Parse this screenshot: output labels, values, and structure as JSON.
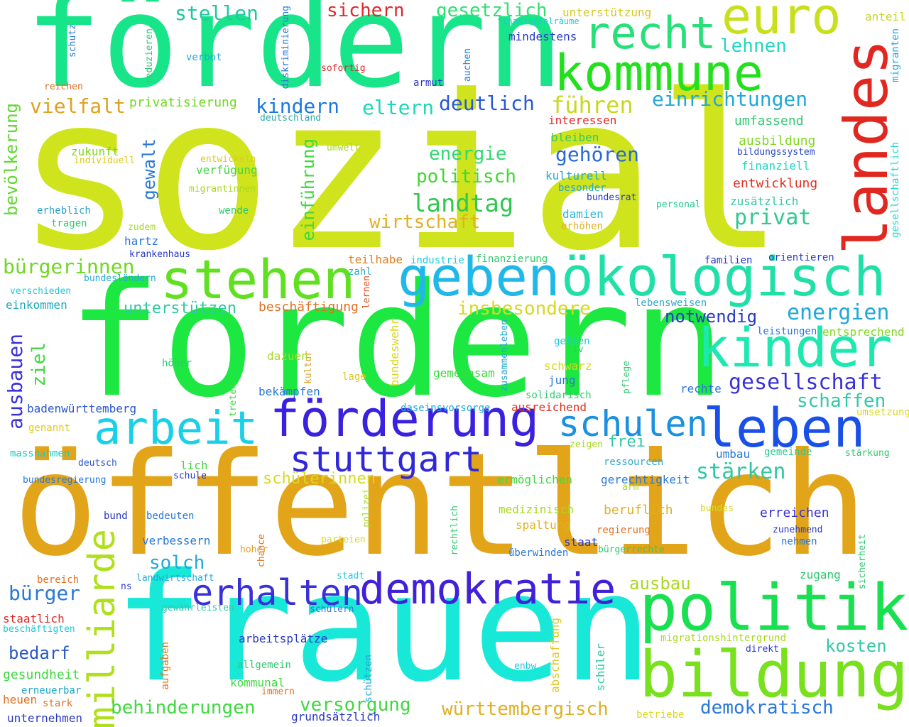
{
  "words": [
    {
      "text": "sozial",
      "color": "#cfe41c"
    },
    {
      "text": "fördern",
      "color": "#18e58a"
    },
    {
      "text": "fordern",
      "color": "#1ce841"
    },
    {
      "text": "öffentlich",
      "color": "#e2a51a"
    },
    {
      "text": "frauen",
      "color": "#18e8d8"
    },
    {
      "text": "landes",
      "color": "#e02820"
    },
    {
      "text": "kommune",
      "color": "#22e01c"
    },
    {
      "text": "recht",
      "color": "#28e07a"
    },
    {
      "text": "euro",
      "color": "#c8e01c"
    },
    {
      "text": "geben",
      "color": "#20b8e8"
    },
    {
      "text": "ökologisch",
      "color": "#20e0a8"
    },
    {
      "text": "stehen",
      "color": "#60e020"
    },
    {
      "text": "kinder",
      "color": "#1ce8b0"
    },
    {
      "text": "förderung",
      "color": "#3a20e0"
    },
    {
      "text": "leben",
      "color": "#1a50e8"
    },
    {
      "text": "arbeit",
      "color": "#1ad0e8"
    },
    {
      "text": "schulen",
      "color": "#1a90e0"
    },
    {
      "text": "stuttgart",
      "color": "#3028d8"
    },
    {
      "text": "politik",
      "color": "#18e050"
    },
    {
      "text": "bildung",
      "color": "#78e01c"
    },
    {
      "text": "demokratie",
      "color": "#4020d8"
    },
    {
      "text": "erhalten",
      "color": "#3a30d8"
    },
    {
      "text": "milliarde",
      "color": "#b0e01c"
    },
    {
      "text": "stellen",
      "color": "#20c8a0"
    },
    {
      "text": "sichern",
      "color": "#e02828"
    },
    {
      "text": "gesetzlich",
      "color": "#30e070"
    },
    {
      "text": "unterstützung",
      "color": "#d8c820"
    },
    {
      "text": "anteil",
      "color": "#c8d820"
    },
    {
      "text": "finanzspielräume",
      "color": "#20c8d8"
    },
    {
      "text": "mindestens",
      "color": "#2838c8"
    },
    {
      "text": "lehnen",
      "color": "#20d8c0"
    },
    {
      "text": "vielfalt",
      "color": "#e0a020"
    },
    {
      "text": "privatisierung",
      "color": "#70d820"
    },
    {
      "text": "kindern",
      "color": "#1a78e0"
    },
    {
      "text": "eltern",
      "color": "#1ad8b8"
    },
    {
      "text": "deutlich",
      "color": "#2858d8"
    },
    {
      "text": "führen",
      "color": "#c8d820"
    },
    {
      "text": "einrichtungen",
      "color": "#20a8d8"
    },
    {
      "text": "umfassend",
      "color": "#30c870"
    },
    {
      "text": "ausbildung",
      "color": "#80d820"
    },
    {
      "text": "bildungssystem",
      "color": "#2848c8"
    },
    {
      "text": "finanziell",
      "color": "#20d8c8"
    },
    {
      "text": "entwicklung",
      "color": "#e03020"
    },
    {
      "text": "zusätzlich",
      "color": "#30c8a8"
    },
    {
      "text": "gesellschaftlich",
      "color": "#20d8c8"
    },
    {
      "text": "migranten",
      "color": "#20a8e0"
    },
    {
      "text": "personal",
      "color": "#20c890"
    },
    {
      "text": "energie",
      "color": "#30d870"
    },
    {
      "text": "gehören",
      "color": "#2868d8"
    },
    {
      "text": "politisch",
      "color": "#40d830"
    },
    {
      "text": "landtag",
      "color": "#30c850"
    },
    {
      "text": "privat",
      "color": "#30c890"
    },
    {
      "text": "wirtschaft",
      "color": "#e0b020"
    },
    {
      "text": "kulturell",
      "color": "#28a8d8"
    },
    {
      "text": "besonder",
      "color": "#20a8d8"
    },
    {
      "text": "bundesrat",
      "color": "#2838c8"
    },
    {
      "text": "bleiben",
      "color": "#30c870"
    },
    {
      "text": "interessen",
      "color": "#e02828"
    },
    {
      "text": "damien",
      "color": "#28b8d8"
    },
    {
      "text": "erhöhen",
      "color": "#e0b020"
    },
    {
      "text": "einführung",
      "color": "#40d840"
    },
    {
      "text": "gewalt",
      "color": "#2878d8"
    },
    {
      "text": "bevölkerung",
      "color": "#60d830"
    },
    {
      "text": "zukunft",
      "color": "#80d820"
    },
    {
      "text": "individuell",
      "color": "#e0c820"
    },
    {
      "text": "entwickeln",
      "color": "#e0c820"
    },
    {
      "text": "umwelt",
      "color": "#a8d820"
    },
    {
      "text": "verfügung",
      "color": "#40d840"
    },
    {
      "text": "migrantinnen",
      "color": "#a8d820"
    },
    {
      "text": "erheblich",
      "color": "#30a0c8"
    },
    {
      "text": "tragen",
      "color": "#30c870"
    },
    {
      "text": "wende",
      "color": "#30c870"
    },
    {
      "text": "zudem",
      "color": "#a8d820"
    },
    {
      "text": "hartz",
      "color": "#2878d8"
    },
    {
      "text": "krankenhaus",
      "color": "#2838c8"
    },
    {
      "text": "bürgerinnen",
      "color": "#70d820"
    },
    {
      "text": "bundesländern",
      "color": "#28a8d8"
    },
    {
      "text": "verschieden",
      "color": "#20c8d8"
    },
    {
      "text": "einkommen",
      "color": "#20a8b8"
    },
    {
      "text": "unterstützen",
      "color": "#30c8a0"
    },
    {
      "text": "beschäftigung",
      "color": "#e07020"
    },
    {
      "text": "teilhabe",
      "color": "#e08020"
    },
    {
      "text": "zahl",
      "color": "#30a8c8"
    },
    {
      "text": "lernen",
      "color": "#e05020"
    },
    {
      "text": "industrie",
      "color": "#20c8d8"
    },
    {
      "text": "finanzierung",
      "color": "#30c870"
    },
    {
      "text": "familien",
      "color": "#2838c8"
    },
    {
      "text": "orientieren",
      "color": "#2838c8"
    },
    {
      "text": "lebensweisen",
      "color": "#30a8c8"
    },
    {
      "text": "energien",
      "color": "#20a8d8"
    },
    {
      "text": "notwendig",
      "color": "#2838c8"
    },
    {
      "text": "insbesondere",
      "color": "#d8d820"
    },
    {
      "text": "leistungen",
      "color": "#2878d8"
    },
    {
      "text": "entsprechend",
      "color": "#80d820"
    },
    {
      "text": "ausbauen",
      "color": "#3a30d8"
    },
    {
      "text": "ziel",
      "color": "#40d840"
    },
    {
      "text": "bundeswehr",
      "color": "#d8d820"
    },
    {
      "text": "kultur",
      "color": "#e0a020"
    },
    {
      "text": "dazuen",
      "color": "#a8d820"
    },
    {
      "text": "höher",
      "color": "#30c870"
    },
    {
      "text": "lage",
      "color": "#e0c820"
    },
    {
      "text": "gelten",
      "color": "#20c8d8"
    },
    {
      "text": "iv",
      "color": "#30c870"
    },
    {
      "text": "schwarz",
      "color": "#d8d820"
    },
    {
      "text": "jung",
      "color": "#2878d8"
    },
    {
      "text": "zusammenleben",
      "color": "#20a8c8"
    },
    {
      "text": "pflege",
      "color": "#30c870"
    },
    {
      "text": "gemeinsam",
      "color": "#40d840"
    },
    {
      "text": "solidarisch",
      "color": "#30c870"
    },
    {
      "text": "rechte",
      "color": "#2878d8"
    },
    {
      "text": "gesellschaft",
      "color": "#3a30d8"
    },
    {
      "text": "schaffen",
      "color": "#30c8a8"
    },
    {
      "text": "treten",
      "color": "#40d840"
    },
    {
      "text": "bekämpfen",
      "color": "#2878d8"
    },
    {
      "text": "daseinsvorsorge",
      "color": "#20a8d8"
    },
    {
      "text": "ausreichend",
      "color": "#e03020"
    },
    {
      "text": "umsetzung",
      "color": "#d8d820"
    },
    {
      "text": "badenwürttemberg",
      "color": "#2858c8"
    },
    {
      "text": "genannt",
      "color": "#e0c820"
    },
    {
      "text": "massnahmen",
      "color": "#20c8c8"
    },
    {
      "text": "deutsch",
      "color": "#2858c8"
    },
    {
      "text": "frei",
      "color": "#30c8a8"
    },
    {
      "text": "ressourcen",
      "color": "#30a8c8"
    },
    {
      "text": "zeigen",
      "color": "#a8d820"
    },
    {
      "text": "umbau",
      "color": "#2878d8"
    },
    {
      "text": "gemeinde",
      "color": "#30c890"
    },
    {
      "text": "stärkung",
      "color": "#30c870"
    },
    {
      "text": "bundesregierung",
      "color": "#2878d8"
    },
    {
      "text": "schule",
      "color": "#2838c8"
    },
    {
      "text": "lich",
      "color": "#40d840"
    },
    {
      "text": "schülerinnen",
      "color": "#d8d820"
    },
    {
      "text": "ermöglichen",
      "color": "#40d840"
    },
    {
      "text": "gerechtigkeit",
      "color": "#2878d8"
    },
    {
      "text": "arm",
      "color": "#a8d820"
    },
    {
      "text": "stärken",
      "color": "#30c8a0"
    },
    {
      "text": "bund",
      "color": "#2838c8"
    },
    {
      "text": "bedeuten",
      "color": "#2878d8"
    },
    {
      "text": "polizei",
      "color": "#a8d820"
    },
    {
      "text": "rechtlich",
      "color": "#30c870"
    },
    {
      "text": "medizinisch",
      "color": "#a8d820"
    },
    {
      "text": "beruflich",
      "color": "#e0b020"
    },
    {
      "text": "bundes",
      "color": "#d8d820"
    },
    {
      "text": "erreichen",
      "color": "#3a30d8"
    },
    {
      "text": "zunehmend",
      "color": "#2838c8"
    },
    {
      "text": "nehmen",
      "color": "#2878d8"
    },
    {
      "text": "sicherheit",
      "color": "#30c870"
    },
    {
      "text": "verbessern",
      "color": "#2878d8"
    },
    {
      "text": "chance",
      "color": "#e07020"
    },
    {
      "text": "hoher",
      "color": "#e0a020"
    },
    {
      "text": "parteien",
      "color": "#d8d820"
    },
    {
      "text": "spaltung",
      "color": "#e0b020"
    },
    {
      "text": "staat",
      "color": "#2838c8"
    },
    {
      "text": "regierung",
      "color": "#e07020"
    },
    {
      "text": "überwinden",
      "color": "#2878d8"
    },
    {
      "text": "bürgerrechte",
      "color": "#30c870"
    },
    {
      "text": "solch",
      "color": "#20a8d8"
    },
    {
      "text": "landwirtschaft",
      "color": "#20a8d8"
    },
    {
      "text": "stadt",
      "color": "#20c8d8"
    },
    {
      "text": "zugang",
      "color": "#30c870"
    },
    {
      "text": "bürger",
      "color": "#2878d8"
    },
    {
      "text": "bereich",
      "color": "#e07020"
    },
    {
      "text": "ns",
      "color": "#2838c8"
    },
    {
      "text": "ausbau",
      "color": "#a8d820"
    },
    {
      "text": "gewährleisten",
      "color": "#30c8a8"
    },
    {
      "text": "schülern",
      "color": "#2878d8"
    },
    {
      "text": "staatlich",
      "color": "#e02828"
    },
    {
      "text": "beschäftigten",
      "color": "#20c8d8"
    },
    {
      "text": "migrationshintergrund",
      "color": "#a8d820"
    },
    {
      "text": "direkt",
      "color": "#2838c8"
    },
    {
      "text": "kosten",
      "color": "#30c8a8"
    },
    {
      "text": "bedarf",
      "color": "#2858c8"
    },
    {
      "text": "arbeitsplätze",
      "color": "#2838c8"
    },
    {
      "text": "abschaffung",
      "color": "#e0c820"
    },
    {
      "text": "enbw",
      "color": "#20c8d8"
    },
    {
      "text": "schüler",
      "color": "#30c8a8"
    },
    {
      "text": "gesundheit",
      "color": "#40d840"
    },
    {
      "text": "allgemein",
      "color": "#30c870"
    },
    {
      "text": "aufgaben",
      "color": "#e07020"
    },
    {
      "text": "schützen",
      "color": "#20a8d8"
    },
    {
      "text": "kommunal",
      "color": "#40d840"
    },
    {
      "text": "immern",
      "color": "#e07020"
    },
    {
      "text": "erneuerbar",
      "color": "#20a8c8"
    },
    {
      "text": "heuen",
      "color": "#e07020"
    },
    {
      "text": "stark",
      "color": "#e07020"
    },
    {
      "text": "behinderungen",
      "color": "#40d840"
    },
    {
      "text": "versorgung",
      "color": "#40d840"
    },
    {
      "text": "württembergisch",
      "color": "#e0b020"
    },
    {
      "text": "demokratisch",
      "color": "#2878d8"
    },
    {
      "text": "betriebe",
      "color": "#d8d820"
    },
    {
      "text": "unternehmen",
      "color": "#2838c8"
    },
    {
      "text": "grundsätzlich",
      "color": "#2838c8"
    },
    {
      "text": "reichen",
      "color": "#e07020"
    },
    {
      "text": "sofortig",
      "color": "#e02828"
    },
    {
      "text": "diskriminierung",
      "color": "#2878d8"
    },
    {
      "text": "reduzieren",
      "color": "#30c870"
    },
    {
      "text": "verbot",
      "color": "#20a8d8"
    },
    {
      "text": "schutz",
      "color": "#2878d8"
    },
    {
      "text": "armut",
      "color": "#2838c8"
    },
    {
      "text": "auchen",
      "color": "#2878d8"
    },
    {
      "text": "deutschland",
      "color": "#30a8a8"
    }
  ]
}
